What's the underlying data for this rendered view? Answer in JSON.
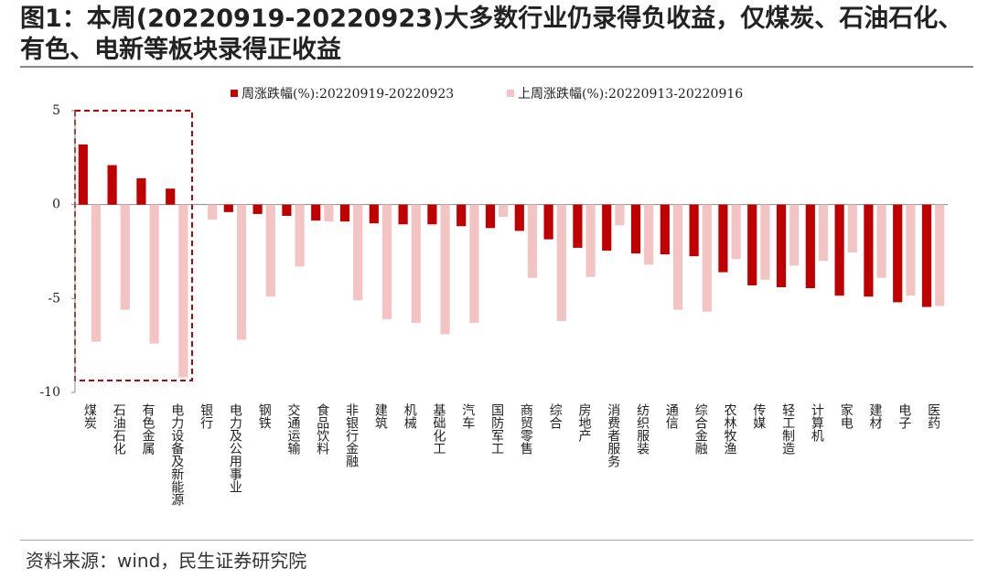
{
  "chart_data": {
    "type": "bar",
    "title": "图1：本周(20220919-20220923)大多数行业仍录得负收益，仅煤炭、石油石化、有色、电新等板块录得正收益",
    "source": "资料来源：wind，民生证券研究院",
    "categories": [
      "煤炭",
      "石油石化",
      "有色金属",
      "电力设备及新能源",
      "银行",
      "电力及公用事业",
      "钢铁",
      "交通运输",
      "食品饮料",
      "非银行金融",
      "建筑",
      "机械",
      "基础化工",
      "汽车",
      "国防军工",
      "商贸零售",
      "综合",
      "房地产",
      "消费者服务",
      "纺织服装",
      "通信",
      "综合金融",
      "农林牧渔",
      "传媒",
      "轻工制造",
      "计算机",
      "家电",
      "建材",
      "电子",
      "医药"
    ],
    "series": [
      {
        "name": "周涨跌幅(%):20220919-20220923",
        "color": "#c00000",
        "values": [
          3.2,
          2.1,
          1.4,
          0.85,
          0,
          -0.4,
          -0.5,
          -0.6,
          -0.85,
          -0.9,
          -1.0,
          -1.05,
          -1.05,
          -1.15,
          -1.25,
          -1.4,
          -1.85,
          -2.3,
          -2.45,
          -2.6,
          -2.65,
          -2.75,
          -3.6,
          -4.3,
          -4.4,
          -4.45,
          -4.85,
          -4.9,
          -5.2,
          -5.45
        ]
      },
      {
        "name": "上周涨跌幅(%):20220913-20220916",
        "color": "#f2c4c4",
        "values": [
          -7.3,
          -5.6,
          -7.4,
          -9.2,
          -0.8,
          -7.2,
          -4.9,
          -3.3,
          -0.9,
          -5.1,
          -6.1,
          -6.3,
          -6.9,
          -6.3,
          -0.65,
          -3.9,
          -6.2,
          -3.85,
          -1.1,
          -3.2,
          -5.6,
          -5.7,
          -2.9,
          -4.0,
          -3.25,
          -3.0,
          -2.55,
          -3.9,
          -4.85,
          -5.4
        ]
      }
    ],
    "ylim": [
      -10,
      5
    ],
    "yticks": [
      -10,
      -5,
      0,
      5
    ],
    "grid": false,
    "legend": "top"
  }
}
